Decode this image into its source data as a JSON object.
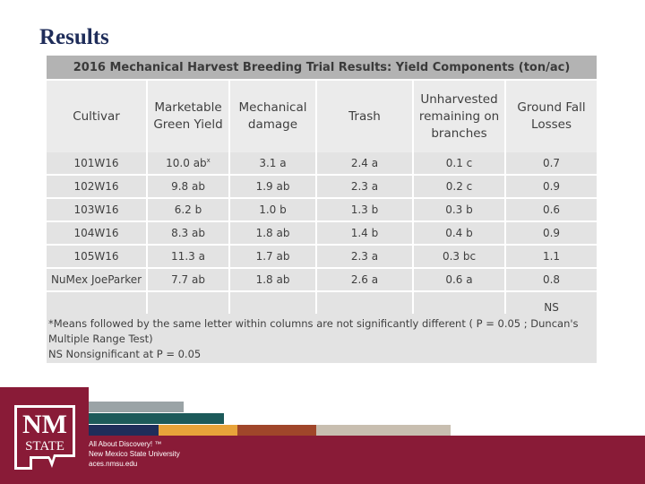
{
  "slide": {
    "title": "Results"
  },
  "table": {
    "title": "2016 Mechanical Harvest Breeding Trial Results: Yield Components (ton/ac)",
    "headers": [
      "Cultivar",
      "Marketable Green Yield",
      "Mechanical damage",
      "Trash",
      "Unharvested remaining on branches",
      "Ground Fall Losses"
    ],
    "rows": [
      [
        "101W16",
        "10.0 ab",
        "3.1 a",
        "2.4 a",
        "0.1 c",
        "0.7"
      ],
      [
        "102W16",
        "9.8 ab",
        "1.9 ab",
        "2.3 a",
        "0.2 c",
        "0.9"
      ],
      [
        "103W16",
        "6.2 b",
        "1.0 b",
        "1.3 b",
        "0.3 b",
        "0.6"
      ],
      [
        "104W16",
        "8.3 ab",
        "1.8 ab",
        "1.4 b",
        "0.4 b",
        "0.9"
      ],
      [
        "105W16",
        "11.3 a",
        "1.7 ab",
        "2.3 a",
        "0.3 bc",
        "1.1"
      ],
      [
        "NuMex JoeParker",
        "7.7 ab",
        "1.8 ab",
        "2.6 a",
        "0.6 a",
        "0.8"
      ]
    ],
    "first_cell_superscript": "x",
    "ns_label": "NS",
    "footnote_line1": "*Means followed by the same letter within columns are not significantly different ( P = 0.05 ; Duncan's Multiple Range Test)",
    "footnote_line2": "NS Nonsignificant at P = 0.05"
  },
  "footer": {
    "logo_line1": "NM",
    "logo_line2": "STATE",
    "tagline": "All About Discovery! ™",
    "university": "New Mexico State University",
    "url": "aces.nmsu.edu",
    "colors": {
      "maroon": "#891b37",
      "gray": "#9aa3a6",
      "teal": "#1d5a5a",
      "navy": "#1f2d5a",
      "gold": "#e8a33a",
      "rust": "#a0462a",
      "tan": "#c8beb0"
    }
  }
}
